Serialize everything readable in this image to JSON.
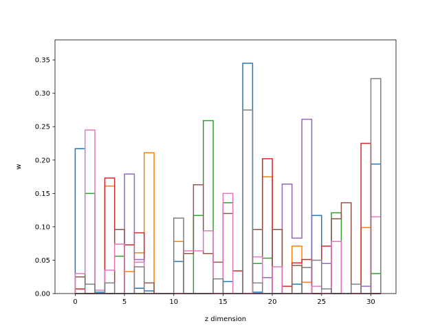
{
  "chart_data": {
    "type": "step",
    "title": "",
    "xlabel": "z dimension",
    "ylabel": "w",
    "xlim": [
      -2.05,
      32.55
    ],
    "ylim": [
      0,
      0.38
    ],
    "xticks": [
      0,
      5,
      10,
      15,
      20,
      25,
      30
    ],
    "yticks": [
      0.0,
      0.05,
      0.1,
      0.15,
      0.2,
      0.25,
      0.3,
      0.35
    ],
    "x": [
      0,
      1,
      2,
      3,
      4,
      5,
      6,
      7,
      8,
      9,
      10,
      11,
      12,
      13,
      14,
      15,
      16,
      17,
      18,
      19,
      20,
      21,
      22,
      23,
      24,
      25,
      26,
      27,
      28,
      29,
      30
    ],
    "series": [
      {
        "color": "#1f77b4",
        "values": [
          0.217,
          0.0,
          0.002,
          0.0,
          0.0,
          0.0,
          0.008,
          0.004,
          0.0,
          0.0,
          0.048,
          0.0,
          0.0,
          0.0,
          0.0,
          0.018,
          0.0,
          0.345,
          0.002,
          0.0,
          0.0,
          0.0,
          0.014,
          0.0,
          0.117,
          0.0,
          0.0,
          0.0,
          0.0,
          0.0,
          0.194
        ]
      },
      {
        "color": "#ff7f0e",
        "values": [
          0.0,
          0.0,
          0.0,
          0.161,
          0.0,
          0.033,
          0.061,
          0.211,
          0.0,
          0.0,
          0.078,
          0.0,
          0.0,
          0.0,
          0.0,
          0.0,
          0.0,
          0.0,
          0.0,
          0.175,
          0.0,
          0.0,
          0.071,
          0.017,
          0.0,
          0.0,
          0.0,
          0.0,
          0.0,
          0.099,
          0.0
        ]
      },
      {
        "color": "#2ca02c",
        "values": [
          0.0,
          0.15,
          0.0,
          0.0,
          0.056,
          0.0,
          0.0,
          0.0,
          0.0,
          0.0,
          0.0,
          0.0,
          0.117,
          0.259,
          0.0,
          0.136,
          0.0,
          0.0,
          0.045,
          0.053,
          0.0,
          0.0,
          0.0,
          0.0,
          0.0,
          0.0,
          0.121,
          0.0,
          0.0,
          0.0,
          0.03
        ]
      },
      {
        "color": "#d62728",
        "values": [
          0.007,
          0.0,
          0.0,
          0.173,
          0.0,
          0.073,
          0.091,
          0.0,
          0.0,
          0.0,
          0.0,
          0.0,
          0.0,
          0.0,
          0.0,
          0.0,
          0.034,
          0.0,
          0.0,
          0.202,
          0.0,
          0.011,
          0.046,
          0.051,
          0.0,
          0.071,
          0.0,
          0.0,
          0.0,
          0.225,
          0.0
        ]
      },
      {
        "color": "#9467bd",
        "values": [
          0.0,
          0.0,
          0.0,
          0.0,
          0.0,
          0.179,
          0.051,
          0.0,
          0.0,
          0.0,
          0.0,
          0.0,
          0.0,
          0.0,
          0.0,
          0.0,
          0.0,
          0.0,
          0.0,
          0.024,
          0.0,
          0.164,
          0.083,
          0.261,
          0.0,
          0.045,
          0.0,
          0.0,
          0.0,
          0.011,
          0.0
        ]
      },
      {
        "color": "#8c564b",
        "values": [
          0.025,
          0.0,
          0.0,
          0.0,
          0.096,
          0.0,
          0.0,
          0.016,
          0.0,
          0.0,
          0.0,
          0.06,
          0.163,
          0.06,
          0.047,
          0.12,
          0.0,
          0.0,
          0.096,
          0.0,
          0.096,
          0.0,
          0.042,
          0.0,
          0.0,
          0.0,
          0.112,
          0.136,
          0.0,
          0.0,
          0.0
        ]
      },
      {
        "color": "#e377c2",
        "values": [
          0.03,
          0.245,
          0.005,
          0.035,
          0.074,
          0.0,
          0.047,
          0.0,
          0.0,
          0.0,
          0.0,
          0.064,
          0.064,
          0.094,
          0.0,
          0.15,
          0.0,
          0.0,
          0.055,
          0.0,
          0.04,
          0.0,
          0.0,
          0.0,
          0.011,
          0.0,
          0.078,
          0.0,
          0.0,
          0.0,
          0.115
        ]
      },
      {
        "color": "#7f7f7f",
        "values": [
          0.0,
          0.014,
          0.0,
          0.016,
          0.0,
          0.0,
          0.04,
          0.0,
          0.0,
          0.0,
          0.113,
          0.0,
          0.0,
          0.0,
          0.022,
          0.0,
          0.0,
          0.275,
          0.016,
          0.0,
          0.0,
          0.0,
          0.0,
          0.039,
          0.05,
          0.007,
          0.0,
          0.0,
          0.014,
          0.0,
          0.322
        ]
      }
    ]
  }
}
